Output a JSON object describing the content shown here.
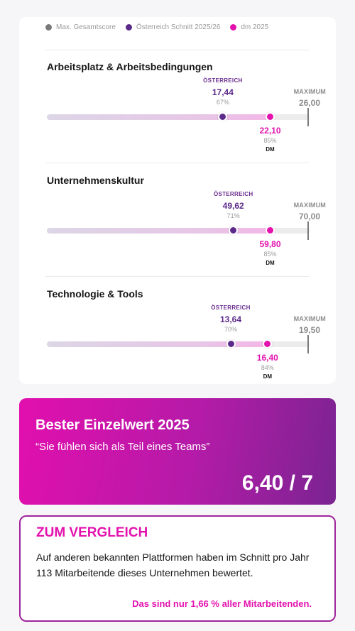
{
  "legend": {
    "items": [
      {
        "label": "Max. Gesamtscore",
        "color": "#7a7a7a"
      },
      {
        "label": "Österreich Schnitt 2025/26",
        "color": "#5c2b8a"
      },
      {
        "label": "dm 2025",
        "color": "#e312ae"
      }
    ]
  },
  "sections": [
    {
      "title": "Arbeitsplatz & Arbeitsbedingungen",
      "at_label": "ÖSTERREICH",
      "at_value": "17,44",
      "at_pct": "67%",
      "dm_value": "22,10",
      "dm_pct": "85%",
      "dm_label": "DM",
      "max_label": "MAXIMUM",
      "max_value": "26,00",
      "at_fraction": 0.67,
      "dm_fraction": 0.85
    },
    {
      "title": "Unternehmenskultur",
      "at_label": "ÖSTERREICH",
      "at_value": "49,62",
      "at_pct": "71%",
      "dm_value": "59,80",
      "dm_pct": "85%",
      "dm_label": "DM",
      "max_label": "MAXIMUM",
      "max_value": "70,00",
      "at_fraction": 0.71,
      "dm_fraction": 0.85
    },
    {
      "title": "Technologie & Tools",
      "at_label": "ÖSTERREICH",
      "at_value": "13,64",
      "at_pct": "70%",
      "dm_value": "16,40",
      "dm_pct": "84%",
      "dm_label": "DM",
      "max_label": "MAXIMUM",
      "max_value": "19,50",
      "at_fraction": 0.7,
      "dm_fraction": 0.84
    }
  ],
  "best": {
    "title": "Bester Einzelwert 2025",
    "quote": "“Sie fühlen sich als Teil eines Teams”",
    "value": "6,40 / 7"
  },
  "compare": {
    "title": "ZUM VERGLEICH",
    "text": "Auf anderen bekannten Plattformen haben im Schnitt pro Jahr 113 Mitarbeitende dieses Unternehmen bewertet.",
    "note": "Das sind nur 1,66 % aller Mitarbeitenden."
  }
}
